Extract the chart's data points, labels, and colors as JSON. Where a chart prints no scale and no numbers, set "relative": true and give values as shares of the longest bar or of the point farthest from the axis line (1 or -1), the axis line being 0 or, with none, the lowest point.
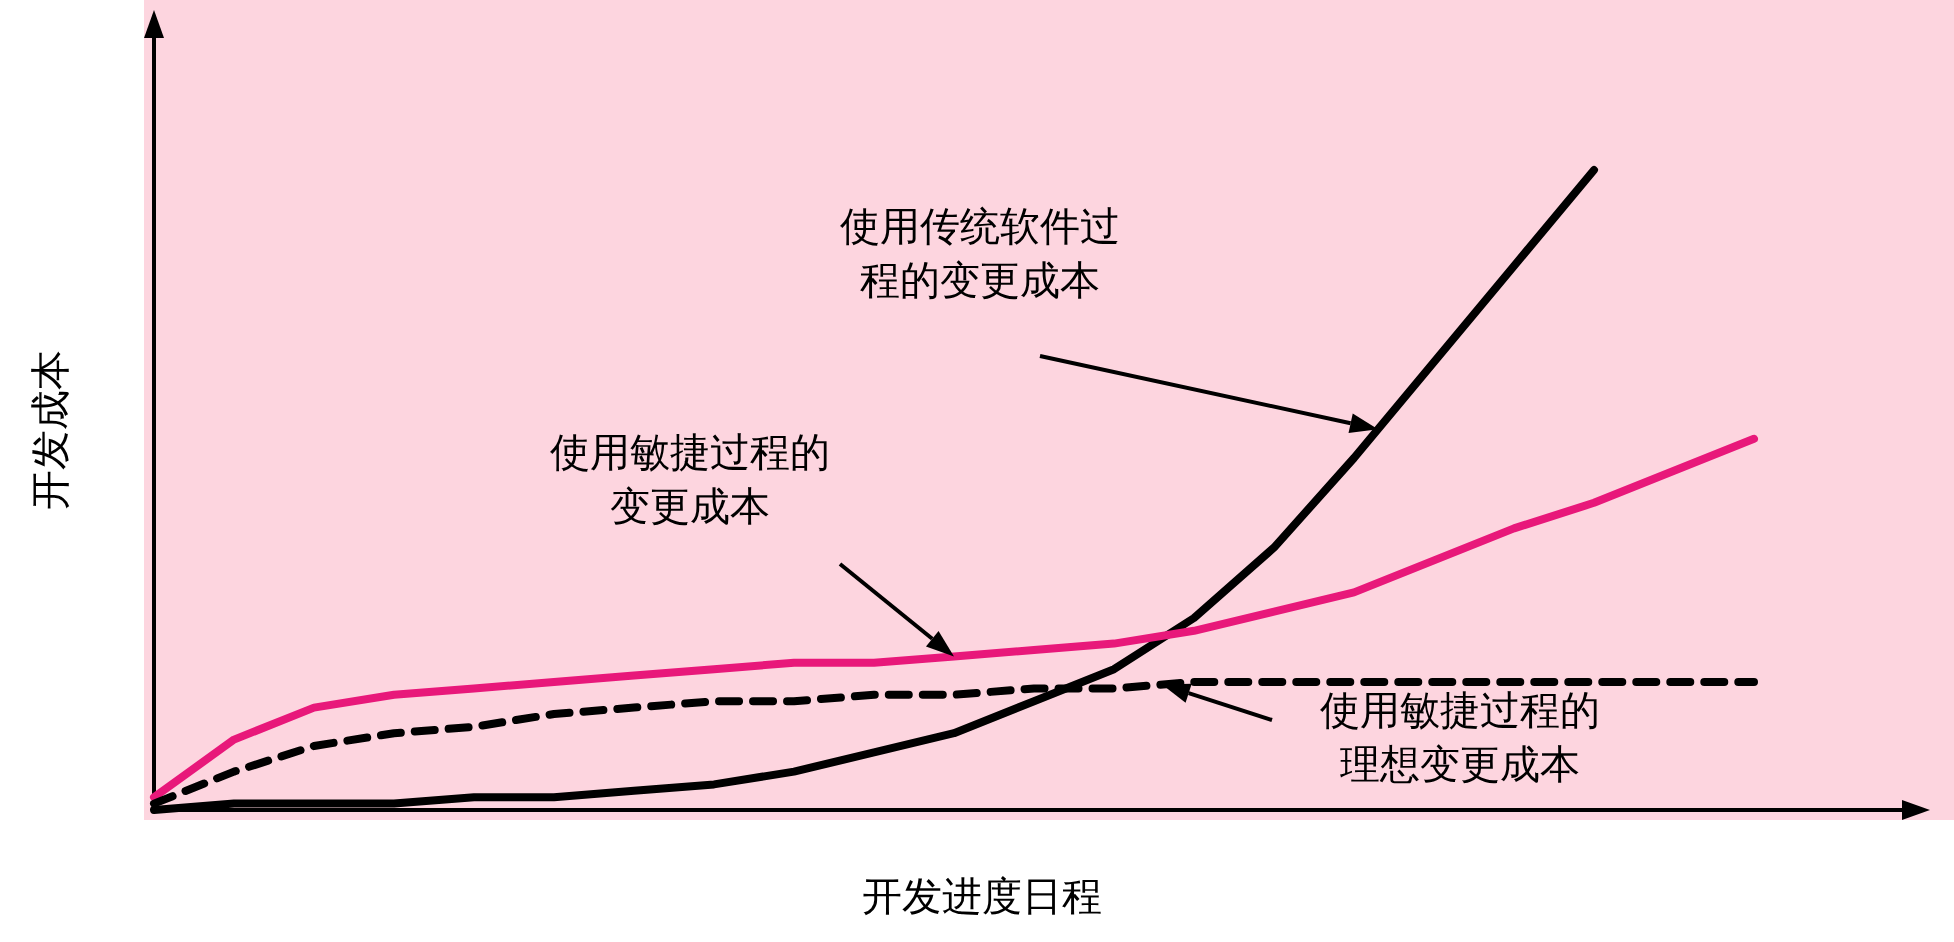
{
  "chart_data": {
    "type": "line",
    "relative": true,
    "xlabel": "开发进度日程",
    "ylabel": "开发成本",
    "grid": false,
    "marker": "none",
    "annotations": [
      "使用传统软件过程的变更成本",
      "使用敏捷过程的变更成本",
      "使用敏捷过程的理想变更成本"
    ],
    "categories": [
      null,
      null,
      null,
      null,
      null,
      null,
      null,
      null,
      null,
      null,
      null,
      null,
      null,
      null,
      null,
      null,
      null,
      null,
      null,
      null,
      null
    ],
    "series": [
      {
        "color": "#000000",
        "line_style": "solid",
        "values": [
          0.0,
          0.01,
          0.01,
          0.01,
          0.02,
          0.02,
          0.03,
          0.04,
          0.06,
          0.09,
          0.12,
          0.17,
          0.22,
          0.3,
          0.41,
          0.55,
          0.7,
          0.85,
          1.0,
          null,
          null
        ]
      },
      {
        "color": "#e8187a",
        "line_style": "solid",
        "values": [
          0.02,
          0.11,
          0.16,
          0.18,
          0.19,
          0.2,
          0.21,
          0.22,
          0.23,
          0.23,
          0.24,
          0.25,
          0.26,
          0.28,
          0.31,
          0.34,
          0.39,
          0.44,
          0.48,
          0.53,
          0.58
        ]
      },
      {
        "color": "#000000",
        "line_style": "dashed",
        "values": [
          0.01,
          0.06,
          0.1,
          0.12,
          0.13,
          0.15,
          0.16,
          0.17,
          0.17,
          0.18,
          0.18,
          0.19,
          0.19,
          0.2,
          0.2,
          0.2,
          0.2,
          0.2,
          0.2,
          0.2,
          0.2
        ]
      }
    ]
  }
}
